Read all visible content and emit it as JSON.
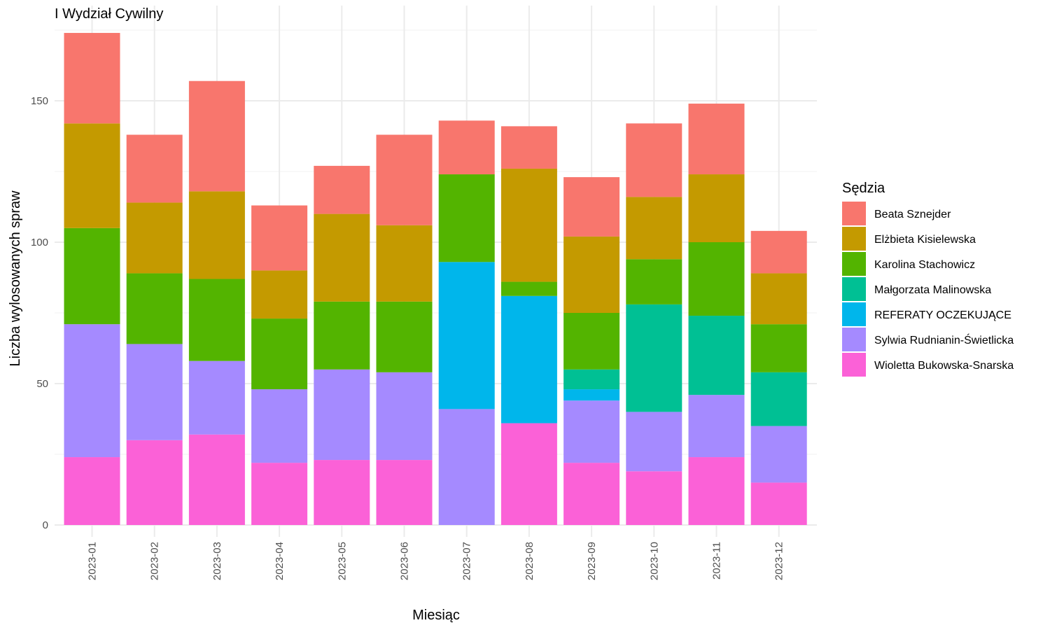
{
  "chart_data": {
    "type": "bar",
    "stacked": true,
    "title": "I Wydział Cywilny",
    "xlabel": "Miesiąc",
    "ylabel": "Liczba wylosowanych spraw",
    "ylim": [
      0,
      176
    ],
    "yticks": [
      0,
      50,
      100,
      150
    ],
    "grid": true,
    "legend_position": "right",
    "legend_title": "Sędzia",
    "categories": [
      "2023-01",
      "2023-02",
      "2023-03",
      "2023-04",
      "2023-05",
      "2023-06",
      "2023-07",
      "2023-08",
      "2023-09",
      "2023-10",
      "2023-11",
      "2023-12"
    ],
    "series": [
      {
        "name": "Beata Sznejder",
        "color": "#F8766D",
        "values": [
          32,
          24,
          39,
          23,
          17,
          32,
          19,
          15,
          21,
          26,
          25,
          15
        ]
      },
      {
        "name": "Elżbieta Kisielewska",
        "color": "#C49A00",
        "values": [
          37,
          25,
          31,
          17,
          31,
          27,
          0,
          40,
          27,
          22,
          24,
          18
        ]
      },
      {
        "name": "Karolina Stachowicz",
        "color": "#53B400",
        "values": [
          34,
          25,
          29,
          25,
          24,
          25,
          31,
          5,
          20,
          16,
          26,
          17
        ]
      },
      {
        "name": "Małgorzata Malinowska",
        "color": "#00C094",
        "values": [
          0,
          0,
          0,
          0,
          0,
          0,
          0,
          0,
          7,
          38,
          28,
          19
        ]
      },
      {
        "name": "REFERATY OCZEKUJĄCE",
        "color": "#00B6EB",
        "values": [
          0,
          0,
          0,
          0,
          0,
          0,
          52,
          45,
          4,
          0,
          0,
          0
        ]
      },
      {
        "name": "Sylwia Rudnianin-Świetlicka",
        "color": "#A58AFF",
        "values": [
          47,
          34,
          26,
          26,
          32,
          31,
          41,
          0,
          22,
          21,
          22,
          20
        ]
      },
      {
        "name": "Wioletta Bukowska-Snarska",
        "color": "#FB61D7",
        "values": [
          24,
          30,
          32,
          22,
          23,
          23,
          0,
          36,
          22,
          19,
          24,
          15
        ]
      }
    ]
  }
}
